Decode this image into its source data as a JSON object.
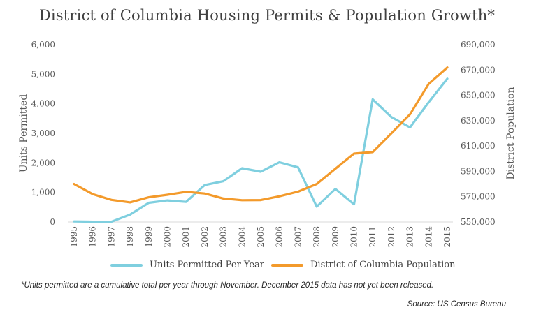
{
  "chart_data": {
    "type": "line",
    "title": "District of Columbia Housing Permits & Population Growth*",
    "x": [
      "1995",
      "1996",
      "1997",
      "1998",
      "1999",
      "2000",
      "2001",
      "2002",
      "2003",
      "2004",
      "2005",
      "2006",
      "2007",
      "2008",
      "2009",
      "2010",
      "2011",
      "2012",
      "2013",
      "2014",
      "2015"
    ],
    "series": [
      {
        "name": "Units Permitted Per Year",
        "axis": "left",
        "color": "#7fcfdf",
        "values": [
          20,
          10,
          10,
          250,
          650,
          730,
          680,
          1250,
          1380,
          1820,
          1700,
          2020,
          1850,
          520,
          1120,
          600,
          4150,
          3550,
          3200,
          4050,
          4850
        ]
      },
      {
        "name": "District of Columbia Population",
        "axis": "right",
        "color": "#f39a2b",
        "values": [
          580000,
          572000,
          567500,
          565500,
          569500,
          571500,
          573800,
          572500,
          568500,
          567200,
          567300,
          570300,
          574000,
          580000,
          592000,
          604000,
          605200,
          620000,
          635000,
          659000,
          672000
        ]
      }
    ],
    "ylabel": "Units Permitted",
    "y2label": "District Population",
    "ylim": [
      0,
      6000
    ],
    "y2lim": [
      550000,
      690000
    ],
    "yticks": [
      "0",
      "1,000",
      "2,000",
      "3,000",
      "4,000",
      "5,000",
      "6,000"
    ],
    "y2ticks": [
      "550,000",
      "570,000",
      "590,000",
      "610,000",
      "630,000",
      "650,000",
      "670,000",
      "690,000"
    ],
    "grid": false,
    "legend_position": "bottom"
  },
  "footnote": "*Units permitted are a cumulative total per year through November. December 2015 data has not yet been released.",
  "source": "Source: US Census Bureau"
}
